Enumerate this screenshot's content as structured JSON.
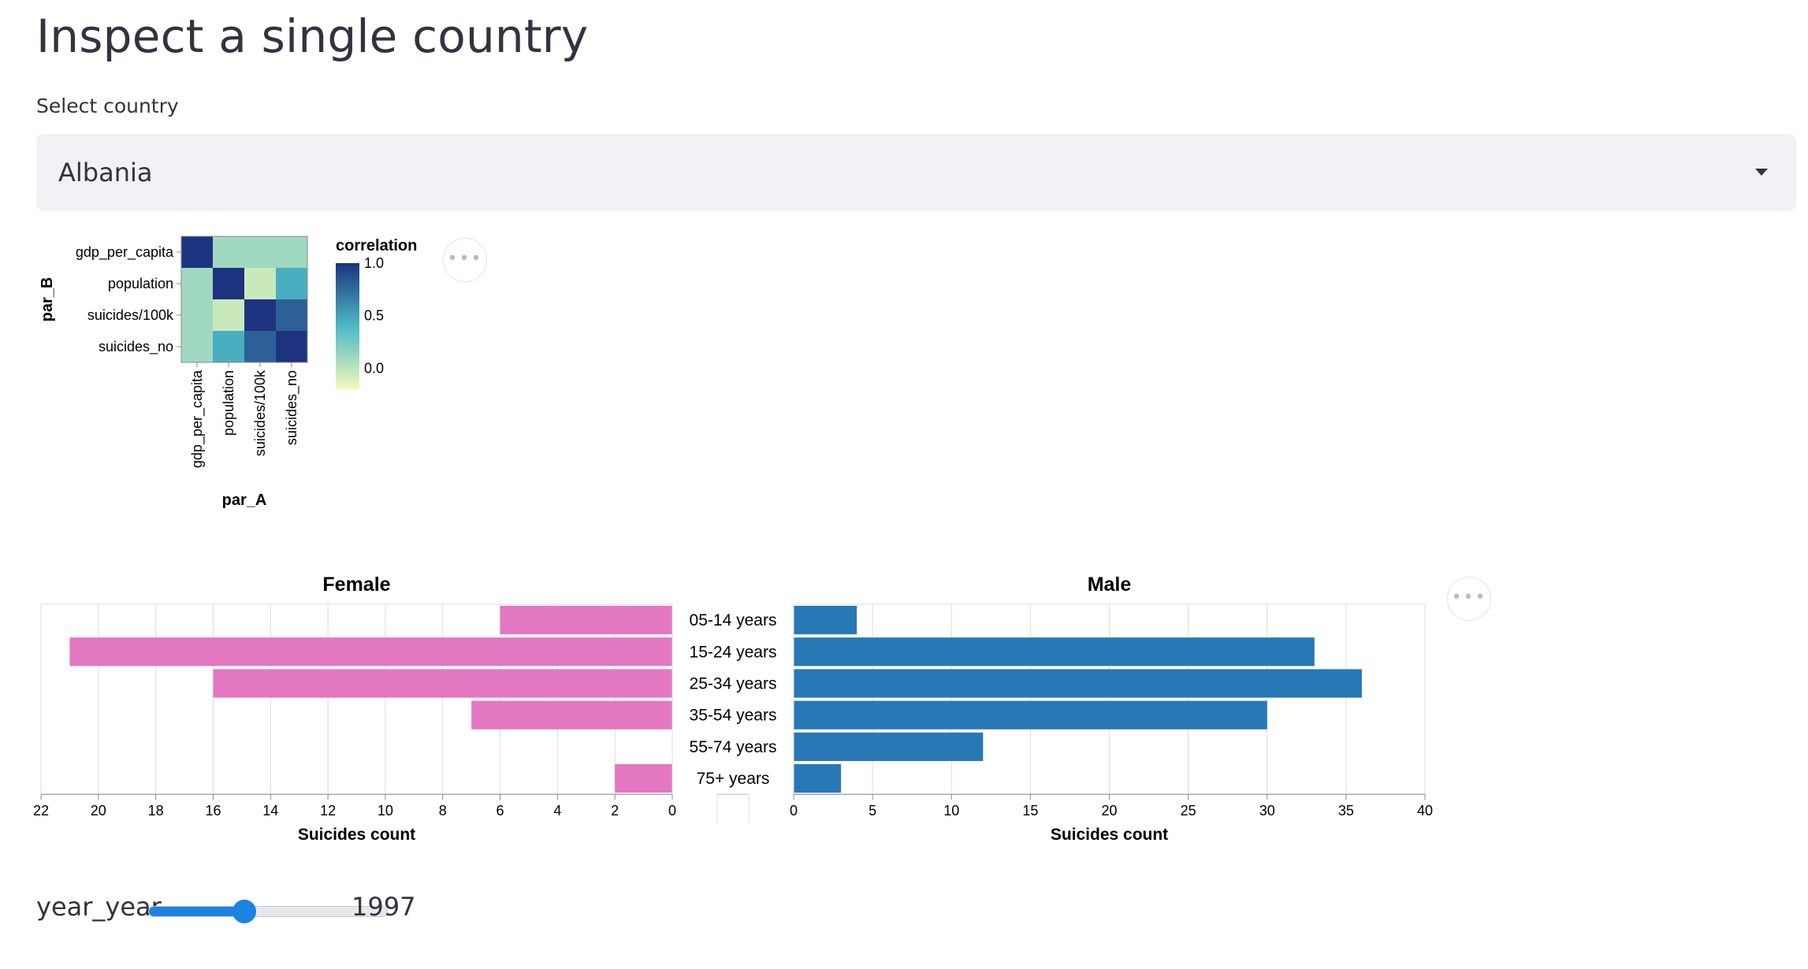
{
  "page": {
    "title": "Inspect a single country"
  },
  "country_select": {
    "label": "Select country",
    "value": "Albania"
  },
  "heatmap": {
    "chart_data": {
      "type": "heatmap",
      "x_title": "par_A",
      "y_title": "par_B",
      "x_labels": [
        "gdp_per_capita",
        "population",
        "suicides/100k",
        "suicides_no"
      ],
      "y_labels": [
        "gdp_per_capita",
        "population",
        "suicides/100k",
        "suicides_no"
      ],
      "values": [
        [
          1.0,
          0.1,
          0.1,
          0.1
        ],
        [
          0.1,
          1.0,
          -0.05,
          0.45
        ],
        [
          0.1,
          -0.05,
          1.0,
          0.8
        ],
        [
          0.1,
          0.45,
          0.8,
          1.0
        ]
      ],
      "legend_title": "correlation",
      "legend_ticks": [
        "1.0",
        "0.5",
        "0.0"
      ],
      "domain": [
        -0.2,
        1.0
      ],
      "colors": {
        "low": "#f2f9ba",
        "mid": "#4db9c5",
        "high": "#1d3380"
      }
    }
  },
  "pyramid": {
    "categories": [
      "05-14 years",
      "15-24 years",
      "25-34 years",
      "35-54 years",
      "55-74 years",
      "75+ years"
    ],
    "female": {
      "title": "Female",
      "xlabel": "Suicides count",
      "color": "#e377c2",
      "xlim": [
        0,
        22
      ],
      "ticks": [
        "0",
        "2",
        "4",
        "6",
        "8",
        "10",
        "12",
        "14",
        "16",
        "18",
        "20",
        "22"
      ],
      "chart_data": {
        "type": "bar",
        "orientation": "horizontal",
        "values": [
          6,
          21,
          16,
          7,
          0,
          2
        ]
      }
    },
    "male": {
      "title": "Male",
      "xlabel": "Suicides count",
      "color": "#2878b5",
      "xlim": [
        0,
        40
      ],
      "ticks": [
        "0",
        "5",
        "10",
        "15",
        "20",
        "25",
        "30",
        "35",
        "40"
      ],
      "chart_data": {
        "type": "bar",
        "orientation": "horizontal",
        "values": [
          4,
          33,
          36,
          30,
          12,
          3
        ]
      }
    }
  },
  "menu_icon": "more-horizontal-icon",
  "menu_glyph": "•••",
  "year_slider": {
    "label": "year_year",
    "value": "1997",
    "min": 1985,
    "max": 2016,
    "fraction": 0.4
  }
}
